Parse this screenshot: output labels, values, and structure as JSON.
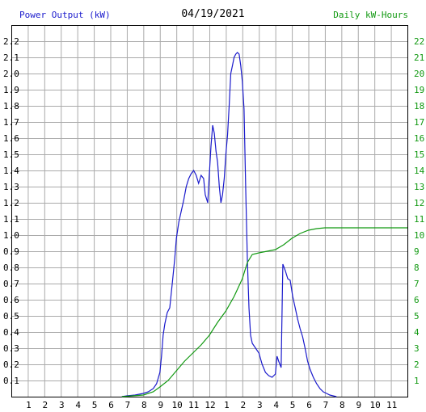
{
  "chart_data": {
    "type": "line",
    "title": "04/19/2021",
    "left_axis_label": "Power Output (kW)",
    "right_axis_label": "Daily kW-Hours",
    "x_tick_labels": [
      "1",
      "2",
      "3",
      "4",
      "5",
      "6",
      "7",
      "8",
      "9",
      "10",
      "11",
      "12",
      "1",
      "2",
      "3",
      "4",
      "5",
      "6",
      "7",
      "8",
      "9",
      "10",
      "11"
    ],
    "x_range_hours": [
      0,
      24
    ],
    "y_left_range": [
      0,
      2.3
    ],
    "y_left_ticks": [
      "0.1",
      "0.2",
      "0.3",
      "0.4",
      "0.5",
      "0.6",
      "0.7",
      "0.8",
      "0.9",
      "1.0",
      "1.1",
      "1.2",
      "1.3",
      "1.4",
      "1.5",
      "1.6",
      "1.7",
      "1.8",
      "1.9",
      "2.0",
      "2.1",
      "2.2"
    ],
    "y_right_range": [
      0,
      23
    ],
    "y_right_ticks": [
      "1",
      "2",
      "3",
      "4",
      "5",
      "6",
      "7",
      "8",
      "9",
      "10",
      "11",
      "12",
      "13",
      "14",
      "15",
      "16",
      "17",
      "18",
      "19",
      "20",
      "21",
      "22"
    ],
    "grid": true,
    "colors": {
      "power": "#1a1acc",
      "energy": "#119911",
      "left_axis_text": "#1a1acc",
      "right_axis_text": "#119911",
      "grid": "#aaaaaa",
      "frame": "#000000"
    },
    "series": [
      {
        "name": "Power Output (kW)",
        "axis": "left",
        "points": [
          [
            6.7,
            0
          ],
          [
            7.0,
            0.005
          ],
          [
            7.5,
            0.01
          ],
          [
            8.0,
            0.02
          ],
          [
            8.3,
            0.03
          ],
          [
            8.6,
            0.05
          ],
          [
            8.8,
            0.08
          ],
          [
            9.0,
            0.15
          ],
          [
            9.1,
            0.25
          ],
          [
            9.2,
            0.38
          ],
          [
            9.3,
            0.45
          ],
          [
            9.45,
            0.52
          ],
          [
            9.6,
            0.55
          ],
          [
            9.75,
            0.7
          ],
          [
            9.9,
            0.85
          ],
          [
            10.0,
            0.98
          ],
          [
            10.15,
            1.08
          ],
          [
            10.3,
            1.15
          ],
          [
            10.45,
            1.22
          ],
          [
            10.6,
            1.3
          ],
          [
            10.75,
            1.35
          ],
          [
            10.9,
            1.38
          ],
          [
            11.05,
            1.4
          ],
          [
            11.2,
            1.37
          ],
          [
            11.35,
            1.32
          ],
          [
            11.5,
            1.37
          ],
          [
            11.65,
            1.35
          ],
          [
            11.75,
            1.25
          ],
          [
            11.9,
            1.2
          ],
          [
            12.0,
            1.38
          ],
          [
            12.1,
            1.55
          ],
          [
            12.2,
            1.68
          ],
          [
            12.3,
            1.63
          ],
          [
            12.4,
            1.52
          ],
          [
            12.5,
            1.45
          ],
          [
            12.6,
            1.3
          ],
          [
            12.7,
            1.2
          ],
          [
            12.8,
            1.25
          ],
          [
            12.9,
            1.35
          ],
          [
            13.0,
            1.5
          ],
          [
            13.1,
            1.62
          ],
          [
            13.2,
            1.8
          ],
          [
            13.3,
            2.0
          ],
          [
            13.4,
            2.05
          ],
          [
            13.5,
            2.1
          ],
          [
            13.6,
            2.12
          ],
          [
            13.7,
            2.13
          ],
          [
            13.8,
            2.12
          ],
          [
            13.9,
            2.05
          ],
          [
            14.0,
            1.95
          ],
          [
            14.1,
            1.78
          ],
          [
            14.2,
            1.3
          ],
          [
            14.3,
            0.85
          ],
          [
            14.4,
            0.55
          ],
          [
            14.5,
            0.38
          ],
          [
            14.6,
            0.33
          ],
          [
            14.8,
            0.3
          ],
          [
            15.0,
            0.27
          ],
          [
            15.2,
            0.2
          ],
          [
            15.4,
            0.15
          ],
          [
            15.6,
            0.13
          ],
          [
            15.8,
            0.12
          ],
          [
            16.0,
            0.14
          ],
          [
            16.1,
            0.25
          ],
          [
            16.2,
            0.22
          ],
          [
            16.35,
            0.18
          ],
          [
            16.45,
            0.82
          ],
          [
            16.6,
            0.78
          ],
          [
            16.75,
            0.73
          ],
          [
            16.9,
            0.72
          ],
          [
            17.05,
            0.62
          ],
          [
            17.2,
            0.55
          ],
          [
            17.35,
            0.48
          ],
          [
            17.5,
            0.42
          ],
          [
            17.65,
            0.37
          ],
          [
            17.8,
            0.3
          ],
          [
            17.95,
            0.22
          ],
          [
            18.1,
            0.17
          ],
          [
            18.3,
            0.12
          ],
          [
            18.5,
            0.08
          ],
          [
            18.7,
            0.05
          ],
          [
            18.9,
            0.03
          ],
          [
            19.1,
            0.02
          ],
          [
            19.3,
            0.01
          ],
          [
            19.5,
            0.005
          ],
          [
            19.7,
            0
          ]
        ]
      },
      {
        "name": "Daily kW-Hours",
        "axis": "right",
        "points": [
          [
            6.7,
            0
          ],
          [
            8.0,
            0.1
          ],
          [
            8.6,
            0.3
          ],
          [
            9.0,
            0.6
          ],
          [
            9.5,
            1.0
          ],
          [
            10.0,
            1.6
          ],
          [
            10.5,
            2.2
          ],
          [
            11.0,
            2.7
          ],
          [
            11.5,
            3.2
          ],
          [
            12.0,
            3.8
          ],
          [
            12.5,
            4.6
          ],
          [
            13.0,
            5.3
          ],
          [
            13.5,
            6.2
          ],
          [
            14.0,
            7.3
          ],
          [
            14.3,
            8.3
          ],
          [
            14.6,
            8.8
          ],
          [
            15.0,
            8.9
          ],
          [
            15.5,
            9.0
          ],
          [
            16.0,
            9.1
          ],
          [
            16.5,
            9.4
          ],
          [
            17.0,
            9.8
          ],
          [
            17.5,
            10.1
          ],
          [
            18.0,
            10.3
          ],
          [
            18.5,
            10.4
          ],
          [
            19.0,
            10.45
          ],
          [
            19.5,
            10.45
          ],
          [
            20.0,
            10.45
          ],
          [
            24.0,
            10.45
          ]
        ]
      }
    ]
  }
}
